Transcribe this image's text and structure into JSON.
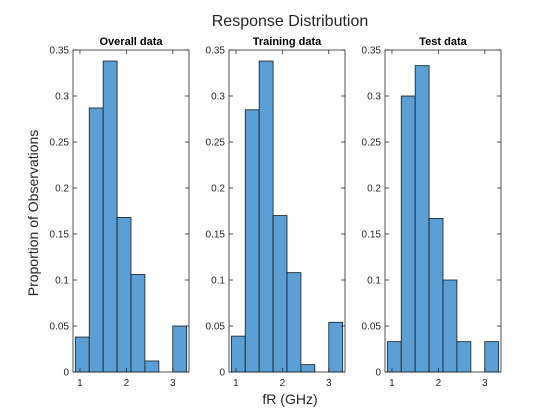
{
  "figure": {
    "title": "Response Distribution",
    "xlabel": "fR (GHz)",
    "ylabel": "Proportion of Observations"
  },
  "colors": {
    "bar_fill": "#5b9fd4",
    "bar_edge": "#1a1a1a",
    "axis": "#262626",
    "background": "#ffffff"
  },
  "chart_data": [
    {
      "type": "bar",
      "title": "Overall data",
      "bin_edges": [
        0.9,
        1.2,
        1.5,
        1.8,
        2.1,
        2.4,
        2.7,
        3.0,
        3.3
      ],
      "values": [
        0.038,
        0.287,
        0.338,
        0.168,
        0.106,
        0.012,
        0.0,
        0.05
      ],
      "xlim": [
        0.85,
        3.35
      ],
      "ylim": [
        0,
        0.35
      ],
      "xticks": [
        1,
        2,
        3
      ],
      "yticks": [
        0,
        0.05,
        0.1,
        0.15,
        0.2,
        0.25,
        0.3,
        0.35
      ],
      "ytick_labels": [
        "0",
        "0.05",
        "0.1",
        "0.15",
        "0.2",
        "0.25",
        "0.3",
        "0.35"
      ]
    },
    {
      "type": "bar",
      "title": "Training data",
      "bin_edges": [
        0.9,
        1.2,
        1.5,
        1.8,
        2.1,
        2.4,
        2.7,
        3.0,
        3.3
      ],
      "values": [
        0.039,
        0.285,
        0.338,
        0.17,
        0.108,
        0.008,
        0.0,
        0.054
      ],
      "xlim": [
        0.85,
        3.35
      ],
      "ylim": [
        0,
        0.35
      ],
      "xticks": [
        1,
        2,
        3
      ],
      "yticks": [
        0,
        0.05,
        0.1,
        0.15,
        0.2,
        0.25,
        0.3,
        0.35
      ],
      "ytick_labels": [
        "0",
        "0.05",
        "0.1",
        "0.15",
        "0.2",
        "0.25",
        "0.3",
        "0.35"
      ]
    },
    {
      "type": "bar",
      "title": "Test data",
      "bin_edges": [
        0.9,
        1.2,
        1.5,
        1.8,
        2.1,
        2.4,
        2.7,
        3.0,
        3.3
      ],
      "values": [
        0.033,
        0.3,
        0.333,
        0.167,
        0.1,
        0.033,
        0.0,
        0.033
      ],
      "xlim": [
        0.85,
        3.35
      ],
      "ylim": [
        0,
        0.35
      ],
      "xticks": [
        1,
        2,
        3
      ],
      "yticks": [
        0,
        0.05,
        0.1,
        0.15,
        0.2,
        0.25,
        0.3,
        0.35
      ],
      "ytick_labels": [
        "0",
        "0.05",
        "0.1",
        "0.15",
        "0.2",
        "0.25",
        "0.3",
        "0.35"
      ]
    }
  ]
}
